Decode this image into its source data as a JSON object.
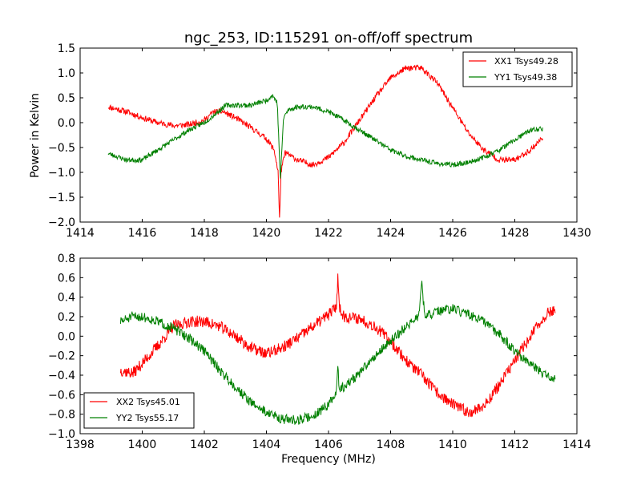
{
  "figure": {
    "background": "#ffffff"
  },
  "chart_data": [
    {
      "type": "line",
      "title": "ngc_253, ID:115291 on-off/off spectrum",
      "xlabel": "",
      "ylabel": "Power in Kelvin",
      "xlim": [
        1414,
        1430
      ],
      "ylim": [
        -2.0,
        1.5
      ],
      "xticks": [
        1414,
        1416,
        1418,
        1420,
        1422,
        1424,
        1426,
        1428,
        1430
      ],
      "yticks": [
        -2.0,
        -1.5,
        -1.0,
        -0.5,
        0.0,
        0.5,
        1.0,
        1.5
      ],
      "ytick_labels": [
        "−2.0",
        "−1.5",
        "−1.0",
        "−0.5",
        "0.0",
        "0.5",
        "1.0",
        "1.5"
      ],
      "grid": false,
      "legend_position": "top-right",
      "series": [
        {
          "name": "XX1 Tsys49.28",
          "color": "#ff0000",
          "noise": 0.06,
          "seed": 11,
          "points": [
            [
              1414.9,
              0.32
            ],
            [
              1415.5,
              0.22
            ],
            [
              1416.0,
              0.1
            ],
            [
              1416.5,
              0.0
            ],
            [
              1417.0,
              -0.06
            ],
            [
              1417.5,
              -0.04
            ],
            [
              1418.0,
              0.05
            ],
            [
              1418.3,
              0.22
            ],
            [
              1418.6,
              0.22
            ],
            [
              1419.0,
              0.1
            ],
            [
              1419.5,
              -0.1
            ],
            [
              1420.0,
              -0.32
            ],
            [
              1420.25,
              -0.55
            ],
            [
              1420.38,
              -1.0
            ],
            [
              1420.42,
              -2.0
            ],
            [
              1420.47,
              -1.0
            ],
            [
              1420.6,
              -0.6
            ],
            [
              1421.0,
              -0.75
            ],
            [
              1421.5,
              -0.85
            ],
            [
              1422.0,
              -0.7
            ],
            [
              1422.5,
              -0.4
            ],
            [
              1423.0,
              0.05
            ],
            [
              1423.5,
              0.5
            ],
            [
              1424.0,
              0.9
            ],
            [
              1424.5,
              1.1
            ],
            [
              1425.0,
              1.1
            ],
            [
              1425.5,
              0.8
            ],
            [
              1426.0,
              0.3
            ],
            [
              1426.5,
              -0.2
            ],
            [
              1427.0,
              -0.55
            ],
            [
              1427.5,
              -0.75
            ],
            [
              1428.0,
              -0.75
            ],
            [
              1428.5,
              -0.55
            ],
            [
              1428.9,
              -0.3
            ]
          ]
        },
        {
          "name": "YY1 Tsys49.38",
          "color": "#008000",
          "noise": 0.05,
          "seed": 23,
          "points": [
            [
              1414.9,
              -0.62
            ],
            [
              1415.5,
              -0.75
            ],
            [
              1416.0,
              -0.75
            ],
            [
              1416.5,
              -0.55
            ],
            [
              1417.0,
              -0.35
            ],
            [
              1417.5,
              -0.15
            ],
            [
              1418.0,
              0.0
            ],
            [
              1418.4,
              0.2
            ],
            [
              1418.7,
              0.35
            ],
            [
              1419.0,
              0.35
            ],
            [
              1419.5,
              0.35
            ],
            [
              1420.0,
              0.45
            ],
            [
              1420.2,
              0.55
            ],
            [
              1420.35,
              0.4
            ],
            [
              1420.45,
              -1.15
            ],
            [
              1420.55,
              0.1
            ],
            [
              1420.7,
              0.25
            ],
            [
              1421.0,
              0.32
            ],
            [
              1421.5,
              0.32
            ],
            [
              1422.0,
              0.22
            ],
            [
              1422.5,
              0.05
            ],
            [
              1423.0,
              -0.15
            ],
            [
              1423.5,
              -0.35
            ],
            [
              1424.0,
              -0.55
            ],
            [
              1424.5,
              -0.68
            ],
            [
              1425.0,
              -0.75
            ],
            [
              1425.5,
              -0.82
            ],
            [
              1426.0,
              -0.85
            ],
            [
              1426.5,
              -0.8
            ],
            [
              1427.0,
              -0.7
            ],
            [
              1427.5,
              -0.55
            ],
            [
              1428.0,
              -0.35
            ],
            [
              1428.5,
              -0.15
            ],
            [
              1428.9,
              -0.12
            ]
          ]
        }
      ]
    },
    {
      "type": "line",
      "title": "",
      "xlabel": "Frequency (MHz)",
      "ylabel": "",
      "xlim": [
        1398,
        1414
      ],
      "ylim": [
        -1.0,
        0.8
      ],
      "xticks": [
        1398,
        1400,
        1402,
        1404,
        1406,
        1408,
        1410,
        1412,
        1414
      ],
      "yticks": [
        -1.0,
        -0.8,
        -0.6,
        -0.4,
        -0.2,
        0.0,
        0.2,
        0.4,
        0.6,
        0.8
      ],
      "ytick_labels": [
        "−1.0",
        "−0.8",
        "−0.6",
        "−0.4",
        "−0.2",
        "0.0",
        "0.2",
        "0.4",
        "0.6",
        "0.8"
      ],
      "grid": false,
      "legend_position": "bottom-left",
      "series": [
        {
          "name": "XX2 Tsys45.01",
          "color": "#ff0000",
          "noise": 0.06,
          "seed": 37,
          "points": [
            [
              1399.3,
              -0.35
            ],
            [
              1399.7,
              -0.38
            ],
            [
              1400.0,
              -0.28
            ],
            [
              1400.5,
              -0.1
            ],
            [
              1401.0,
              0.1
            ],
            [
              1401.5,
              0.15
            ],
            [
              1402.0,
              0.15
            ],
            [
              1402.5,
              0.1
            ],
            [
              1403.0,
              0.0
            ],
            [
              1403.5,
              -0.12
            ],
            [
              1404.0,
              -0.18
            ],
            [
              1404.5,
              -0.12
            ],
            [
              1405.0,
              -0.02
            ],
            [
              1405.5,
              0.1
            ],
            [
              1406.0,
              0.22
            ],
            [
              1406.25,
              0.3
            ],
            [
              1406.3,
              0.6
            ],
            [
              1406.35,
              0.3
            ],
            [
              1406.5,
              0.2
            ],
            [
              1407.0,
              0.18
            ],
            [
              1407.5,
              0.1
            ],
            [
              1408.0,
              -0.05
            ],
            [
              1408.5,
              -0.25
            ],
            [
              1409.0,
              -0.4
            ],
            [
              1409.5,
              -0.58
            ],
            [
              1410.0,
              -0.7
            ],
            [
              1410.5,
              -0.78
            ],
            [
              1411.0,
              -0.72
            ],
            [
              1411.5,
              -0.5
            ],
            [
              1412.0,
              -0.25
            ],
            [
              1412.5,
              0.0
            ],
            [
              1413.0,
              0.22
            ],
            [
              1413.3,
              0.28
            ]
          ]
        },
        {
          "name": "YY2 Tsys55.17",
          "color": "#008000",
          "noise": 0.05,
          "seed": 51,
          "points": [
            [
              1399.3,
              0.15
            ],
            [
              1399.7,
              0.2
            ],
            [
              1400.0,
              0.2
            ],
            [
              1400.5,
              0.15
            ],
            [
              1401.0,
              0.08
            ],
            [
              1401.5,
              -0.02
            ],
            [
              1402.0,
              -0.15
            ],
            [
              1402.5,
              -0.35
            ],
            [
              1403.0,
              -0.52
            ],
            [
              1403.5,
              -0.68
            ],
            [
              1404.0,
              -0.78
            ],
            [
              1404.5,
              -0.85
            ],
            [
              1405.0,
              -0.86
            ],
            [
              1405.5,
              -0.82
            ],
            [
              1406.0,
              -0.7
            ],
            [
              1406.25,
              -0.6
            ],
            [
              1406.3,
              -0.3
            ],
            [
              1406.35,
              -0.55
            ],
            [
              1406.5,
              -0.52
            ],
            [
              1407.0,
              -0.38
            ],
            [
              1407.5,
              -0.2
            ],
            [
              1408.0,
              -0.05
            ],
            [
              1408.5,
              0.1
            ],
            [
              1408.9,
              0.2
            ],
            [
              1409.0,
              0.55
            ],
            [
              1409.1,
              0.2
            ],
            [
              1409.5,
              0.25
            ],
            [
              1410.0,
              0.28
            ],
            [
              1410.5,
              0.22
            ],
            [
              1411.0,
              0.15
            ],
            [
              1411.5,
              0.02
            ],
            [
              1412.0,
              -0.15
            ],
            [
              1412.5,
              -0.3
            ],
            [
              1413.0,
              -0.4
            ],
            [
              1413.3,
              -0.45
            ]
          ]
        }
      ]
    }
  ]
}
